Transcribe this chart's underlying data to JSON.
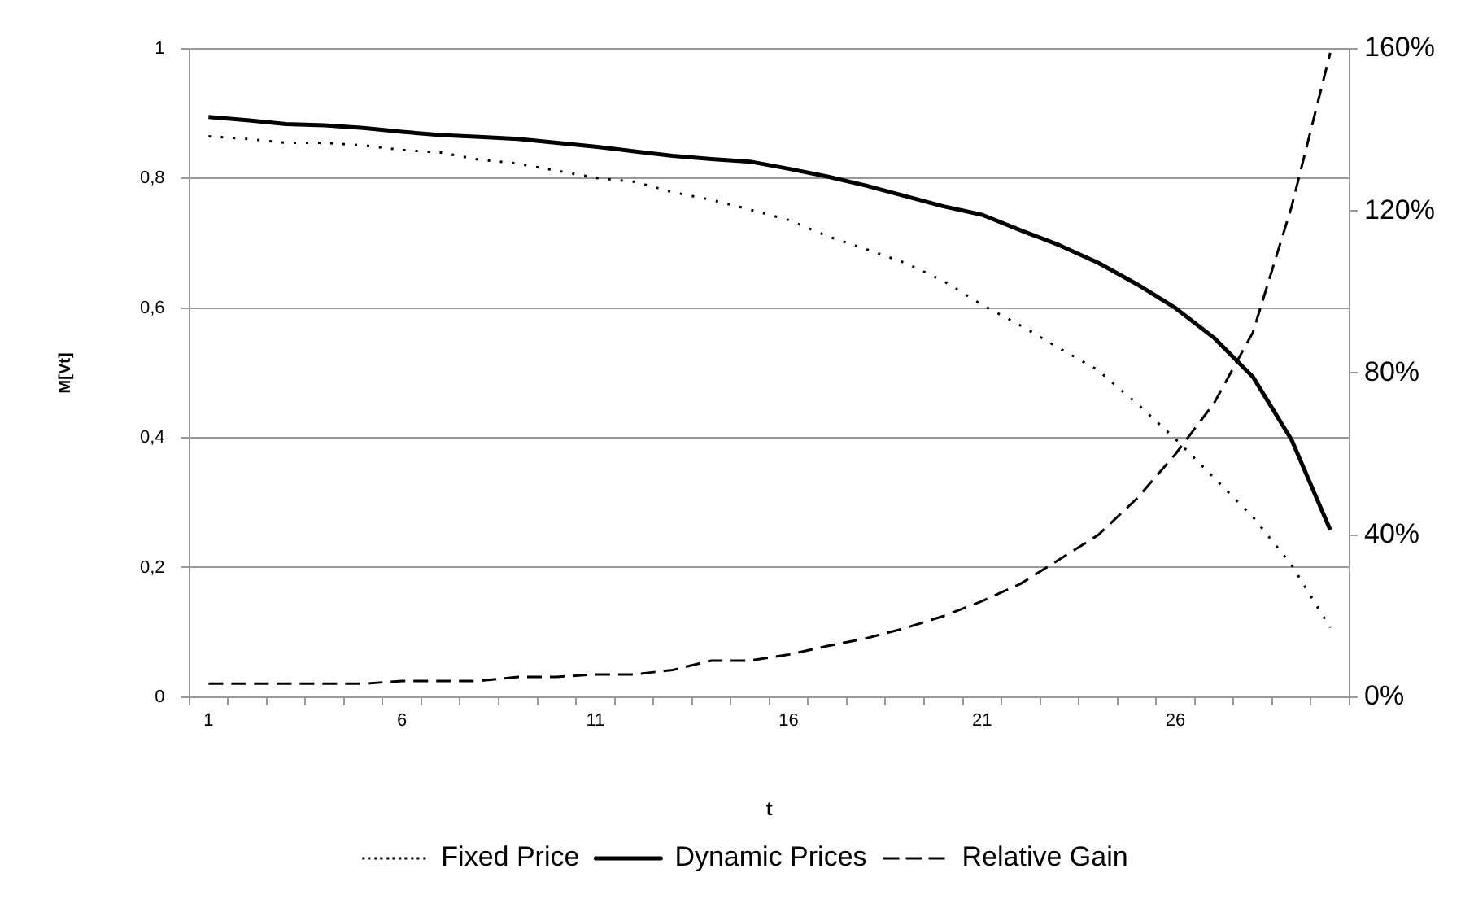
{
  "chart_data": {
    "type": "line",
    "xlabel": "t",
    "ylabel": "M[Vt]",
    "categories": [
      "1",
      null,
      null,
      null,
      null,
      "6",
      null,
      null,
      null,
      null,
      "11",
      null,
      null,
      null,
      null,
      "16",
      null,
      null,
      null,
      null,
      "21",
      null,
      null,
      null,
      null,
      "26",
      null,
      null,
      null,
      null
    ],
    "series": [
      {
        "name": "Fixed Price",
        "color": "#000000",
        "line_style": "dotted",
        "values": [
          0.865,
          0.861,
          0.855,
          0.855,
          0.851,
          0.844,
          0.84,
          0.829,
          0.823,
          0.812,
          0.801,
          0.795,
          0.779,
          0.767,
          0.752,
          0.736,
          0.711,
          0.691,
          0.67,
          0.642,
          0.605,
          0.573,
          0.538,
          0.504,
          0.453,
          0.398,
          0.338,
          0.278,
          0.204,
          0.107
        ]
      },
      {
        "name": "Dynamic Prices",
        "color": "#000000",
        "line_style": "solid",
        "values": [
          0.895,
          0.89,
          0.884,
          0.882,
          0.878,
          0.872,
          0.867,
          0.864,
          0.861,
          0.855,
          0.849,
          0.842,
          0.835,
          0.83,
          0.826,
          0.815,
          0.803,
          0.789,
          0.773,
          0.757,
          0.744,
          0.72,
          0.697,
          0.67,
          0.637,
          0.6,
          0.554,
          0.494,
          0.397,
          0.258
        ]
      },
      {
        "name": "Relative Gain",
        "color": "#000000",
        "line_style": "dashed",
        "axis": "y2",
        "values": [
          3.3,
          3.3,
          3.3,
          3.3,
          3.3,
          4,
          4,
          4,
          5,
          5,
          5.6,
          5.6,
          6.7,
          9,
          9,
          10.5,
          12.6,
          14.5,
          17,
          20,
          23.7,
          28,
          34,
          40,
          49,
          60,
          72.6,
          90,
          121,
          159
        ]
      }
    ],
    "ylim": [
      0,
      1
    ],
    "yticks": [
      0,
      {
        "value": 0.2,
        "label": "0,2"
      },
      {
        "value": 0.4,
        "label": "0,4"
      },
      {
        "value": 0.6,
        "label": "0,6"
      },
      {
        "value": 0.8,
        "label": "0,8"
      },
      1
    ],
    "y2lim": [
      0,
      160
    ],
    "y2ticks": [
      {
        "value": 0,
        "label": "0%"
      },
      {
        "value": 40,
        "label": "40%"
      },
      {
        "value": 80,
        "label": "80%"
      },
      {
        "value": 120,
        "label": "120%"
      },
      {
        "value": 160,
        "label": "160%"
      }
    ],
    "grid": "y",
    "legend": "bottom",
    "marker": "none"
  }
}
